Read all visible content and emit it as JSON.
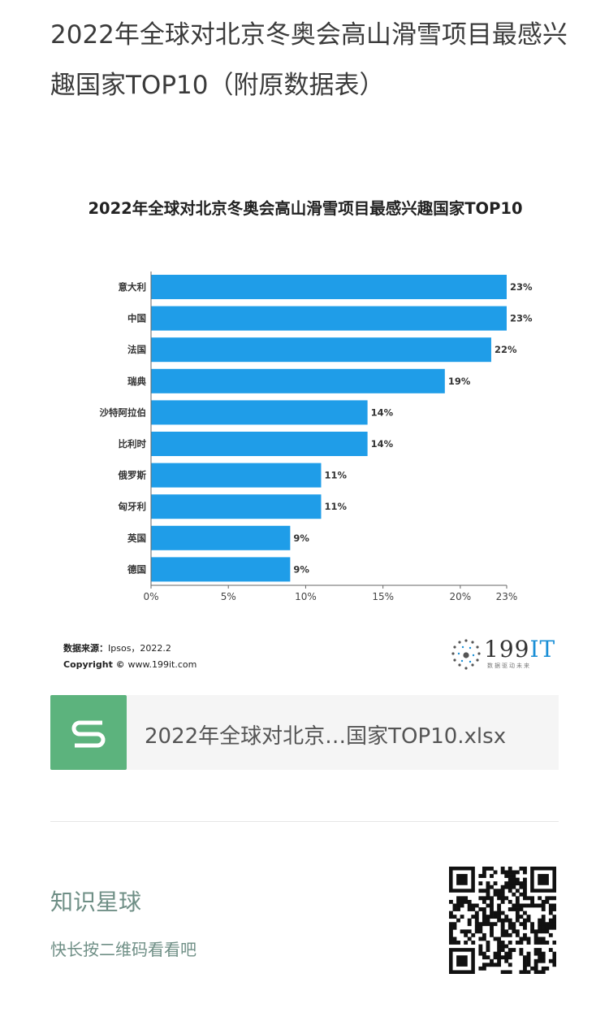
{
  "article": {
    "title": "2022年全球对北京冬奥会高山滑雪项目最感兴趣国家TOP10（附原数据表）"
  },
  "chart_data": {
    "type": "bar",
    "orientation": "horizontal",
    "title": "2022年全球对北京冬奥会高山滑雪项目最感兴趣国家TOP10",
    "categories": [
      "意大利",
      "中国",
      "法国",
      "瑞典",
      "沙特阿拉伯",
      "比利时",
      "俄罗斯",
      "匈牙利",
      "英国",
      "德国"
    ],
    "values": [
      23,
      23,
      22,
      19,
      14,
      14,
      11,
      11,
      9,
      9
    ],
    "value_labels": [
      "23%",
      "23%",
      "22%",
      "19%",
      "14%",
      "14%",
      "11%",
      "11%",
      "9%",
      "9%"
    ],
    "xlim": [
      0,
      23
    ],
    "x_ticks": [
      0,
      5,
      10,
      15,
      20,
      23
    ],
    "x_tick_labels": [
      "0%",
      "5%",
      "10%",
      "15%",
      "20%",
      "23%"
    ],
    "grid": false,
    "bar_color": "#1f9de8"
  },
  "footer": {
    "source_label": "数据来源：",
    "source_value": "Ipsos，2022.2",
    "copyright_label": "Copyright ©",
    "copyright_value": "www.199it.com",
    "logo_main": "199",
    "logo_accent": "IT",
    "logo_sub": "数据驱动未来"
  },
  "file": {
    "name": "2022年全球对北京…国家TOP10.xlsx",
    "icon": "spreadsheet-s-icon",
    "icon_color": "#5cb37d"
  },
  "promo": {
    "title": "知识星球",
    "subtitle": "快长按二维码看看吧",
    "qr_icon": "qr-code-icon"
  }
}
